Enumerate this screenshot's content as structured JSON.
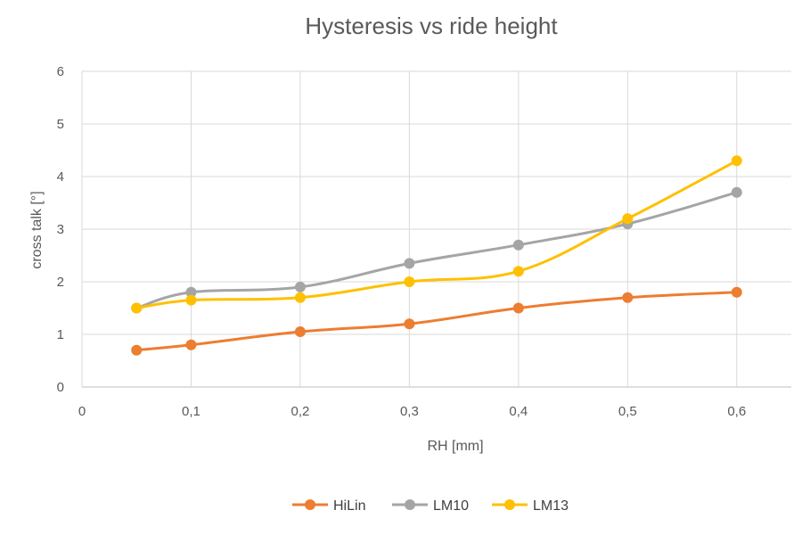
{
  "chart_data": {
    "type": "line",
    "title": "Hysteresis vs ride height",
    "xlabel": "RH [mm]",
    "ylabel": "cross talk [°]",
    "xlim": [
      0,
      0.65
    ],
    "ylim": [
      0,
      6
    ],
    "x_ticks": [
      "0",
      "0,1",
      "0,2",
      "0,3",
      "0,4",
      "0,5",
      "0,6"
    ],
    "y_ticks": [
      "0",
      "1",
      "2",
      "3",
      "4",
      "5",
      "6"
    ],
    "grid": true,
    "legend_position": "bottom",
    "smooth_lines": true,
    "series": [
      {
        "name": "HiLin",
        "color": "#ED7D31",
        "x": [
          0.05,
          0.1,
          0.2,
          0.3,
          0.4,
          0.5,
          0.6
        ],
        "y": [
          0.7,
          0.8,
          1.05,
          1.2,
          1.5,
          1.7,
          1.8
        ]
      },
      {
        "name": "LM10",
        "color": "#A5A5A5",
        "x": [
          0.05,
          0.1,
          0.2,
          0.3,
          0.4,
          0.5,
          0.6
        ],
        "y": [
          1.5,
          1.8,
          1.9,
          2.35,
          2.7,
          3.1,
          3.7
        ]
      },
      {
        "name": "LM13",
        "color": "#FFC000",
        "x": [
          0.05,
          0.1,
          0.2,
          0.3,
          0.4,
          0.5,
          0.6
        ],
        "y": [
          1.5,
          1.65,
          1.7,
          2.0,
          2.2,
          3.2,
          4.3
        ]
      }
    ]
  }
}
